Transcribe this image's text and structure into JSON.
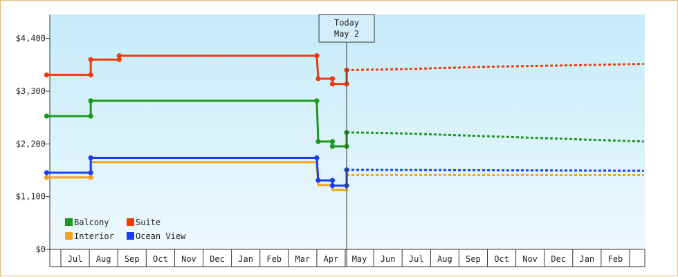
{
  "chart_data": {
    "type": "line",
    "title": "",
    "xlabel": "",
    "ylabel": "",
    "ylim": [
      0,
      4900
    ],
    "y_ticks": [
      "$0",
      "$1,100",
      "$2,200",
      "$3,300",
      "$4,400"
    ],
    "y_tick_values": [
      0,
      1100,
      2200,
      3300,
      4400
    ],
    "months": [
      "Jul",
      "Aug",
      "Sep",
      "Oct",
      "Nov",
      "Dec",
      "Jan",
      "Feb",
      "Mar",
      "Apr",
      "May",
      "Jun",
      "Jul",
      "Aug",
      "Sep",
      "Oct",
      "Nov",
      "Dec",
      "Jan",
      "Feb"
    ],
    "today": {
      "line1": "Today",
      "line2": "May 2",
      "position": 10.05
    },
    "grid": false,
    "legend_position": "bottom-left",
    "series": [
      {
        "name": "Balcony",
        "color": "#1a9a1a",
        "history": [
          [
            -0.5,
            2780
          ],
          [
            1.05,
            2780
          ],
          [
            1.05,
            3100
          ],
          [
            9.0,
            3100
          ],
          [
            9.05,
            2250
          ],
          [
            9.55,
            2250
          ],
          [
            9.55,
            2150
          ],
          [
            10.05,
            2150
          ],
          [
            10.05,
            2440
          ]
        ],
        "forecast": [
          [
            10.05,
            2440
          ],
          [
            12.0,
            2420
          ],
          [
            15.0,
            2360
          ],
          [
            18.0,
            2300
          ],
          [
            20.5,
            2250
          ]
        ]
      },
      {
        "name": "Suite",
        "color": "#f03a0a",
        "history": [
          [
            -0.5,
            3640
          ],
          [
            1.05,
            3640
          ],
          [
            1.05,
            3960
          ],
          [
            2.05,
            3960
          ],
          [
            2.05,
            4040
          ],
          [
            9.0,
            4040
          ],
          [
            9.05,
            3560
          ],
          [
            9.55,
            3560
          ],
          [
            9.55,
            3450
          ],
          [
            10.05,
            3450
          ],
          [
            10.05,
            3740
          ]
        ],
        "forecast": [
          [
            10.05,
            3740
          ],
          [
            12.0,
            3760
          ],
          [
            15.0,
            3810
          ],
          [
            18.0,
            3840
          ],
          [
            20.5,
            3870
          ]
        ]
      },
      {
        "name": "Interior",
        "color": "#f6a31a",
        "history": [
          [
            -0.5,
            1500
          ],
          [
            1.05,
            1500
          ],
          [
            1.05,
            1820
          ],
          [
            9.0,
            1820
          ],
          [
            9.05,
            1340
          ],
          [
            9.55,
            1340
          ],
          [
            9.55,
            1240
          ],
          [
            10.05,
            1240
          ],
          [
            10.05,
            1550
          ]
        ],
        "forecast": [
          [
            10.05,
            1550
          ],
          [
            20.5,
            1550
          ]
        ]
      },
      {
        "name": "Ocean View",
        "color": "#1a3df0",
        "history": [
          [
            -0.5,
            1600
          ],
          [
            1.05,
            1600
          ],
          [
            1.05,
            1910
          ],
          [
            9.0,
            1910
          ],
          [
            9.05,
            1440
          ],
          [
            9.55,
            1440
          ],
          [
            9.55,
            1330
          ],
          [
            10.05,
            1330
          ],
          [
            10.05,
            1660
          ]
        ],
        "forecast": [
          [
            10.05,
            1660
          ],
          [
            15.0,
            1650
          ],
          [
            20.5,
            1640
          ]
        ]
      }
    ],
    "markers": {
      "Balcony": [
        [
          -0.5,
          2780
        ],
        [
          1.05,
          2780
        ],
        [
          1.05,
          3100
        ],
        [
          9.0,
          3100
        ],
        [
          9.05,
          2250
        ],
        [
          9.55,
          2250
        ],
        [
          9.55,
          2150
        ],
        [
          10.05,
          2150
        ],
        [
          10.05,
          2440
        ]
      ],
      "Suite": [
        [
          -0.5,
          3640
        ],
        [
          1.05,
          3640
        ],
        [
          1.05,
          3960
        ],
        [
          2.05,
          3960
        ],
        [
          2.05,
          4040
        ],
        [
          9.0,
          4040
        ],
        [
          9.05,
          3560
        ],
        [
          9.55,
          3560
        ],
        [
          9.55,
          3450
        ],
        [
          10.05,
          3450
        ],
        [
          10.05,
          3740
        ]
      ],
      "Interior": [
        [
          -0.5,
          1500
        ],
        [
          1.05,
          1500
        ]
      ],
      "Ocean View": [
        [
          -0.5,
          1600
        ],
        [
          1.05,
          1600
        ],
        [
          1.05,
          1910
        ],
        [
          9.0,
          1910
        ],
        [
          9.05,
          1440
        ],
        [
          9.55,
          1440
        ],
        [
          9.55,
          1330
        ],
        [
          10.05,
          1330
        ],
        [
          10.05,
          1660
        ]
      ]
    }
  }
}
